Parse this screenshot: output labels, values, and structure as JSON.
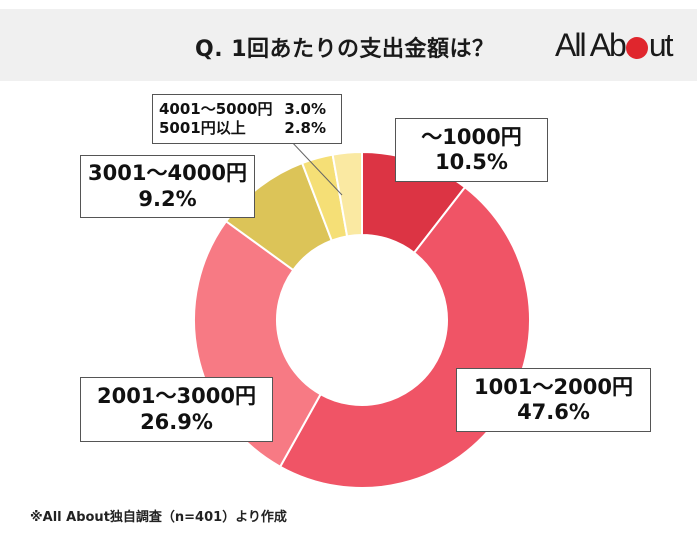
{
  "header": {
    "title": "Q. 1回あたりの支出金額は？",
    "logo": {
      "prefix": "All Ab",
      "suffix": "ut",
      "dot_color": "#e0262d"
    }
  },
  "chart_data": {
    "type": "pie",
    "subtype": "donut",
    "title": "Q. 1回あたりの支出金額は？",
    "categories": [
      "〜1000円",
      "1001〜2000円",
      "2001〜3000円",
      "3001〜4000円",
      "4001〜5000円",
      "5001円以上"
    ],
    "values": [
      10.5,
      47.6,
      26.9,
      9.2,
      3.0,
      2.8
    ],
    "unit": "%",
    "colors": [
      "#dc3444",
      "#f05466",
      "#f77a84",
      "#dcc458",
      "#f5df76",
      "#fae9a2"
    ],
    "start_angle_deg": 0,
    "direction": "clockwise",
    "legend": "none (direct labels)",
    "annotations": [
      "※All About独自調査（n=401）より作成"
    ]
  },
  "labels": {
    "l1000": {
      "name": "〜1000円",
      "pct": "10.5%"
    },
    "l2000": {
      "name": "1001〜2000円",
      "pct": "47.6%"
    },
    "l3000": {
      "name": "2001〜3000円",
      "pct": "26.9%"
    },
    "l4000": {
      "name": "3001〜4000円",
      "pct": "9.2%"
    },
    "l5000": {
      "name": "4001〜5000円",
      "pct": "3.0%"
    },
    "l5001": {
      "name": "5001円以上",
      "pct": "2.8%"
    }
  },
  "footnote": "※All About独自調査（n=401）より作成"
}
